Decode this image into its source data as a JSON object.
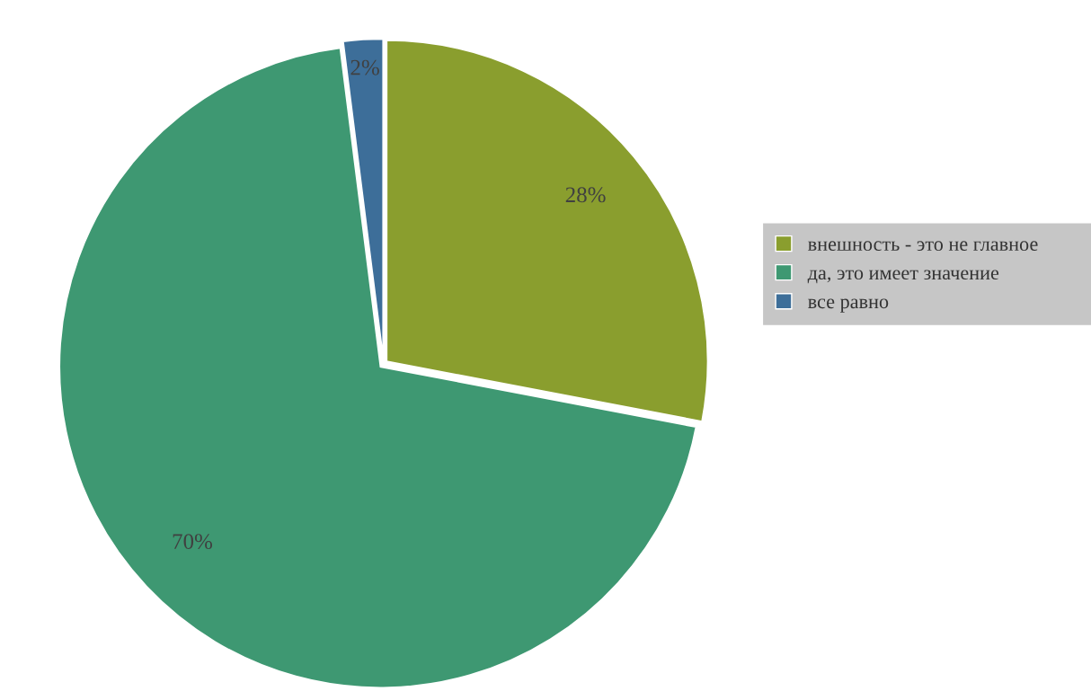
{
  "chart_data": {
    "type": "pie",
    "categories": [
      "внешность - это не главное",
      "да, это имеет значение",
      "все равно"
    ],
    "values": [
      28,
      70,
      2
    ],
    "colors": [
      "#8a9e2e",
      "#3e9872",
      "#3d6e99"
    ],
    "value_labels": [
      "28%",
      "70%",
      "2%"
    ],
    "legend": "right"
  }
}
